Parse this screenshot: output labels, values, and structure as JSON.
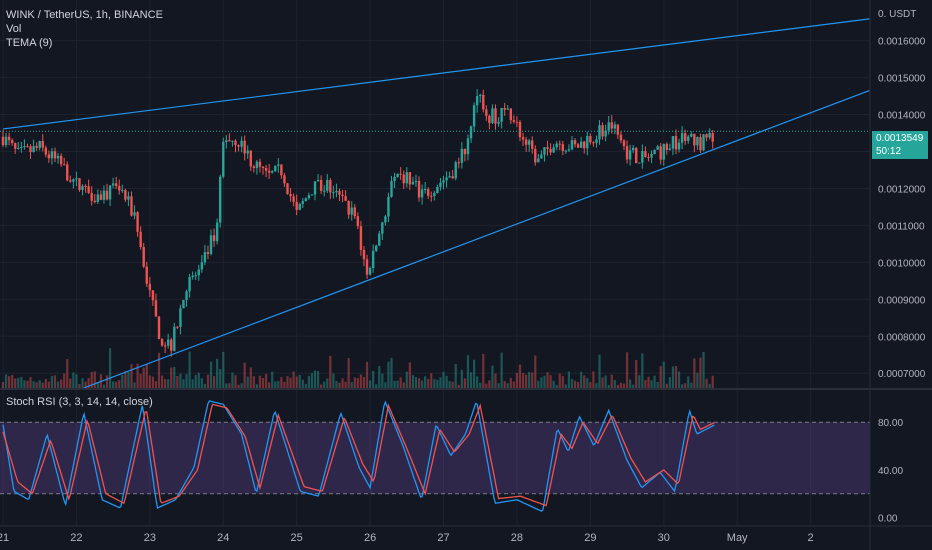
{
  "legend": {
    "symbol": "WINK / TetherUS, 1h, BINANCE",
    "vol": "Vol",
    "tema": "TEMA (9)",
    "stoch": "Stoch RSI (3, 3, 14, 14, close)"
  },
  "currency": "0. USDT",
  "last_price": "0.0013549",
  "countdown": "50:12",
  "colors": {
    "background": "#131722",
    "up": "#26a69a",
    "down": "#ef5350",
    "trendline": "#2196f3",
    "k_line": "#2196f3",
    "d_line": "#ef5350",
    "rsi_band": "#7e57c2"
  },
  "chart_data": [
    {
      "type": "candlestick",
      "y_ticks": [
        "0.0016000",
        "0.0015000",
        "0.0014000",
        "0.0013000",
        "0.0012000",
        "0.0011000",
        "0.0010000",
        "0.0009000",
        "0.0008000",
        "0.0007000"
      ],
      "ylim": [
        0.00066,
        0.00171
      ],
      "x_ticks": [
        "21",
        "22",
        "23",
        "24",
        "25",
        "26",
        "27",
        "28",
        "29",
        "30",
        "May",
        "2"
      ],
      "xlim_days": [
        21,
        32.85
      ],
      "anchors": [
        [
          21.0,
          0.00134
        ],
        [
          21.2,
          0.00129
        ],
        [
          21.5,
          0.00131
        ],
        [
          21.8,
          0.00126
        ],
        [
          22.0,
          0.00121
        ],
        [
          22.3,
          0.00118
        ],
        [
          22.6,
          0.0012
        ],
        [
          22.8,
          0.00112
        ],
        [
          23.0,
          0.00091
        ],
        [
          23.15,
          0.00079
        ],
        [
          23.3,
          0.00078
        ],
        [
          23.5,
          0.00094
        ],
        [
          23.7,
          0.00098
        ],
        [
          23.92,
          0.0011
        ],
        [
          24.0,
          0.00134
        ],
        [
          24.2,
          0.00133
        ],
        [
          24.4,
          0.00127
        ],
        [
          24.6,
          0.00123
        ],
        [
          24.8,
          0.00125
        ],
        [
          25.0,
          0.00113
        ],
        [
          25.2,
          0.0012
        ],
        [
          25.4,
          0.00121
        ],
        [
          25.6,
          0.00117
        ],
        [
          25.8,
          0.00112
        ],
        [
          25.95,
          0.00097
        ],
        [
          26.1,
          0.00106
        ],
        [
          26.3,
          0.00121
        ],
        [
          26.5,
          0.00123
        ],
        [
          26.7,
          0.00118
        ],
        [
          26.9,
          0.00121
        ],
        [
          27.1,
          0.00124
        ],
        [
          27.3,
          0.00131
        ],
        [
          27.45,
          0.00147
        ],
        [
          27.6,
          0.00139
        ],
        [
          27.9,
          0.00141
        ],
        [
          28.1,
          0.00133
        ],
        [
          28.3,
          0.00127
        ],
        [
          28.5,
          0.00133
        ],
        [
          28.8,
          0.00131
        ],
        [
          29.0,
          0.00134
        ],
        [
          29.3,
          0.00137
        ],
        [
          29.5,
          0.0013
        ],
        [
          29.7,
          0.00128
        ],
        [
          29.9,
          0.00129
        ],
        [
          30.1,
          0.00132
        ],
        [
          30.3,
          0.00134
        ],
        [
          30.5,
          0.00132
        ],
        [
          30.7,
          0.00135
        ]
      ],
      "trendlines": [
        {
          "from": [
            21.0,
            0.001361
          ],
          "to": [
            32.8,
            0.001659
          ]
        },
        {
          "from": [
            22.1,
            0.00066
          ],
          "to": [
            32.8,
            0.001465
          ]
        }
      ]
    },
    {
      "type": "line",
      "title": "Stoch RSI (3, 3, 14, 14, close)",
      "y_ticks": [
        "80.00",
        "40.00",
        "0.00"
      ],
      "ylim": [
        -7,
        107
      ],
      "band": [
        20,
        80
      ],
      "series": [
        {
          "role": "K",
          "anchors": [
            [
              21.0,
              78
            ],
            [
              21.15,
              22
            ],
            [
              21.35,
              15
            ],
            [
              21.6,
              70
            ],
            [
              21.85,
              10
            ],
            [
              22.1,
              88
            ],
            [
              22.35,
              15
            ],
            [
              22.6,
              8
            ],
            [
              22.9,
              95
            ],
            [
              23.1,
              8
            ],
            [
              23.35,
              15
            ],
            [
              23.6,
              42
            ],
            [
              23.8,
              98
            ],
            [
              24.0,
              95
            ],
            [
              24.25,
              70
            ],
            [
              24.45,
              20
            ],
            [
              24.7,
              90
            ],
            [
              25.05,
              22
            ],
            [
              25.3,
              18
            ],
            [
              25.6,
              88
            ],
            [
              25.85,
              42
            ],
            [
              26.0,
              25
            ],
            [
              26.2,
              98
            ],
            [
              26.45,
              60
            ],
            [
              26.7,
              15
            ],
            [
              26.9,
              78
            ],
            [
              27.1,
              52
            ],
            [
              27.3,
              70
            ],
            [
              27.45,
              98
            ],
            [
              27.7,
              12
            ],
            [
              28.0,
              15
            ],
            [
              28.35,
              5
            ],
            [
              28.55,
              75
            ],
            [
              28.7,
              55
            ],
            [
              28.85,
              85
            ],
            [
              29.05,
              60
            ],
            [
              29.25,
              90
            ],
            [
              29.5,
              48
            ],
            [
              29.7,
              25
            ],
            [
              29.95,
              38
            ],
            [
              30.15,
              22
            ],
            [
              30.35,
              90
            ],
            [
              30.45,
              70
            ],
            [
              30.7,
              78
            ]
          ]
        },
        {
          "role": "D",
          "anchors": [
            [
              21.0,
              72
            ],
            [
              21.2,
              30
            ],
            [
              21.4,
              20
            ],
            [
              21.65,
              65
            ],
            [
              21.9,
              15
            ],
            [
              22.15,
              82
            ],
            [
              22.4,
              20
            ],
            [
              22.65,
              12
            ],
            [
              22.95,
              92
            ],
            [
              23.15,
              12
            ],
            [
              23.4,
              18
            ],
            [
              23.65,
              40
            ],
            [
              23.85,
              95
            ],
            [
              24.05,
              92
            ],
            [
              24.3,
              68
            ],
            [
              24.5,
              25
            ],
            [
              24.75,
              86
            ],
            [
              25.1,
              26
            ],
            [
              25.35,
              22
            ],
            [
              25.65,
              84
            ],
            [
              25.9,
              45
            ],
            [
              26.05,
              30
            ],
            [
              26.25,
              94
            ],
            [
              26.5,
              58
            ],
            [
              26.75,
              20
            ],
            [
              26.95,
              74
            ],
            [
              27.15,
              55
            ],
            [
              27.35,
              70
            ],
            [
              27.5,
              94
            ],
            [
              27.75,
              16
            ],
            [
              28.05,
              18
            ],
            [
              28.4,
              10
            ],
            [
              28.6,
              70
            ],
            [
              28.75,
              58
            ],
            [
              28.9,
              80
            ],
            [
              29.1,
              62
            ],
            [
              29.3,
              86
            ],
            [
              29.55,
              50
            ],
            [
              29.75,
              30
            ],
            [
              30.0,
              40
            ],
            [
              30.2,
              28
            ],
            [
              30.4,
              86
            ],
            [
              30.5,
              74
            ],
            [
              30.7,
              80
            ]
          ]
        }
      ]
    }
  ]
}
